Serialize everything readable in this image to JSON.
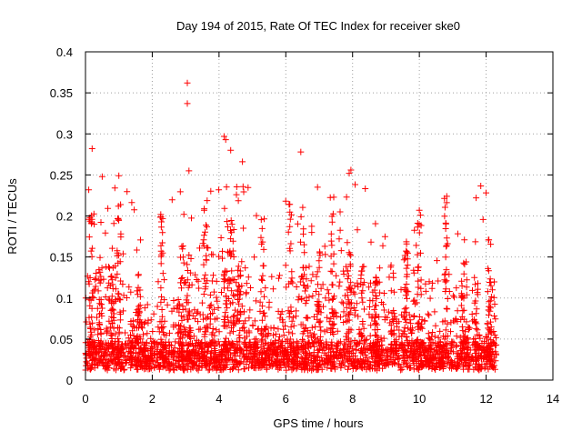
{
  "chart_data": {
    "type": "scatter",
    "title": "Day 194 of 2015, Rate Of TEC Index for receiver ske0",
    "xlabel": "GPS time / hours",
    "ylabel": "ROTI / TECUs",
    "xlim": [
      0,
      14
    ],
    "ylim": [
      0,
      0.4
    ],
    "x_ticks": [
      0,
      2,
      4,
      6,
      8,
      10,
      12,
      14
    ],
    "x_tick_labels": [
      "0",
      "2",
      "4",
      "6",
      "8",
      "10",
      "12",
      "14"
    ],
    "y_ticks": [
      0,
      0.05,
      0.1,
      0.15,
      0.2,
      0.25,
      0.3,
      0.35,
      0.4
    ],
    "y_tick_labels": [
      "0",
      "0.05",
      "0.1",
      "0.15",
      "0.2",
      "0.25",
      "0.3",
      "0.35",
      "0.4"
    ],
    "grid": true,
    "marker": "+",
    "marker_color": "#ff0000",
    "data_x_range_hours": [
      0,
      12.3
    ],
    "series": [
      {
        "name": "ske0",
        "color": "#ff0000",
        "points_note": "dense cloud of ROTI samples, mostly 0.01–0.12 TECU/min",
        "notable_points": [
          {
            "x": 0.2,
            "y": 0.282
          },
          {
            "x": 0.5,
            "y": 0.248
          },
          {
            "x": 1.0,
            "y": 0.249
          },
          {
            "x": 3.05,
            "y": 0.362
          },
          {
            "x": 3.05,
            "y": 0.337
          },
          {
            "x": 3.1,
            "y": 0.255
          },
          {
            "x": 4.15,
            "y": 0.297
          },
          {
            "x": 4.2,
            "y": 0.293
          },
          {
            "x": 4.35,
            "y": 0.28
          },
          {
            "x": 4.7,
            "y": 0.266
          },
          {
            "x": 6.45,
            "y": 0.278
          },
          {
            "x": 6.95,
            "y": 0.235
          },
          {
            "x": 7.95,
            "y": 0.256
          },
          {
            "x": 7.9,
            "y": 0.252
          },
          {
            "x": 10.0,
            "y": 0.207
          },
          {
            "x": 11.7,
            "y": 0.222
          }
        ]
      }
    ]
  }
}
